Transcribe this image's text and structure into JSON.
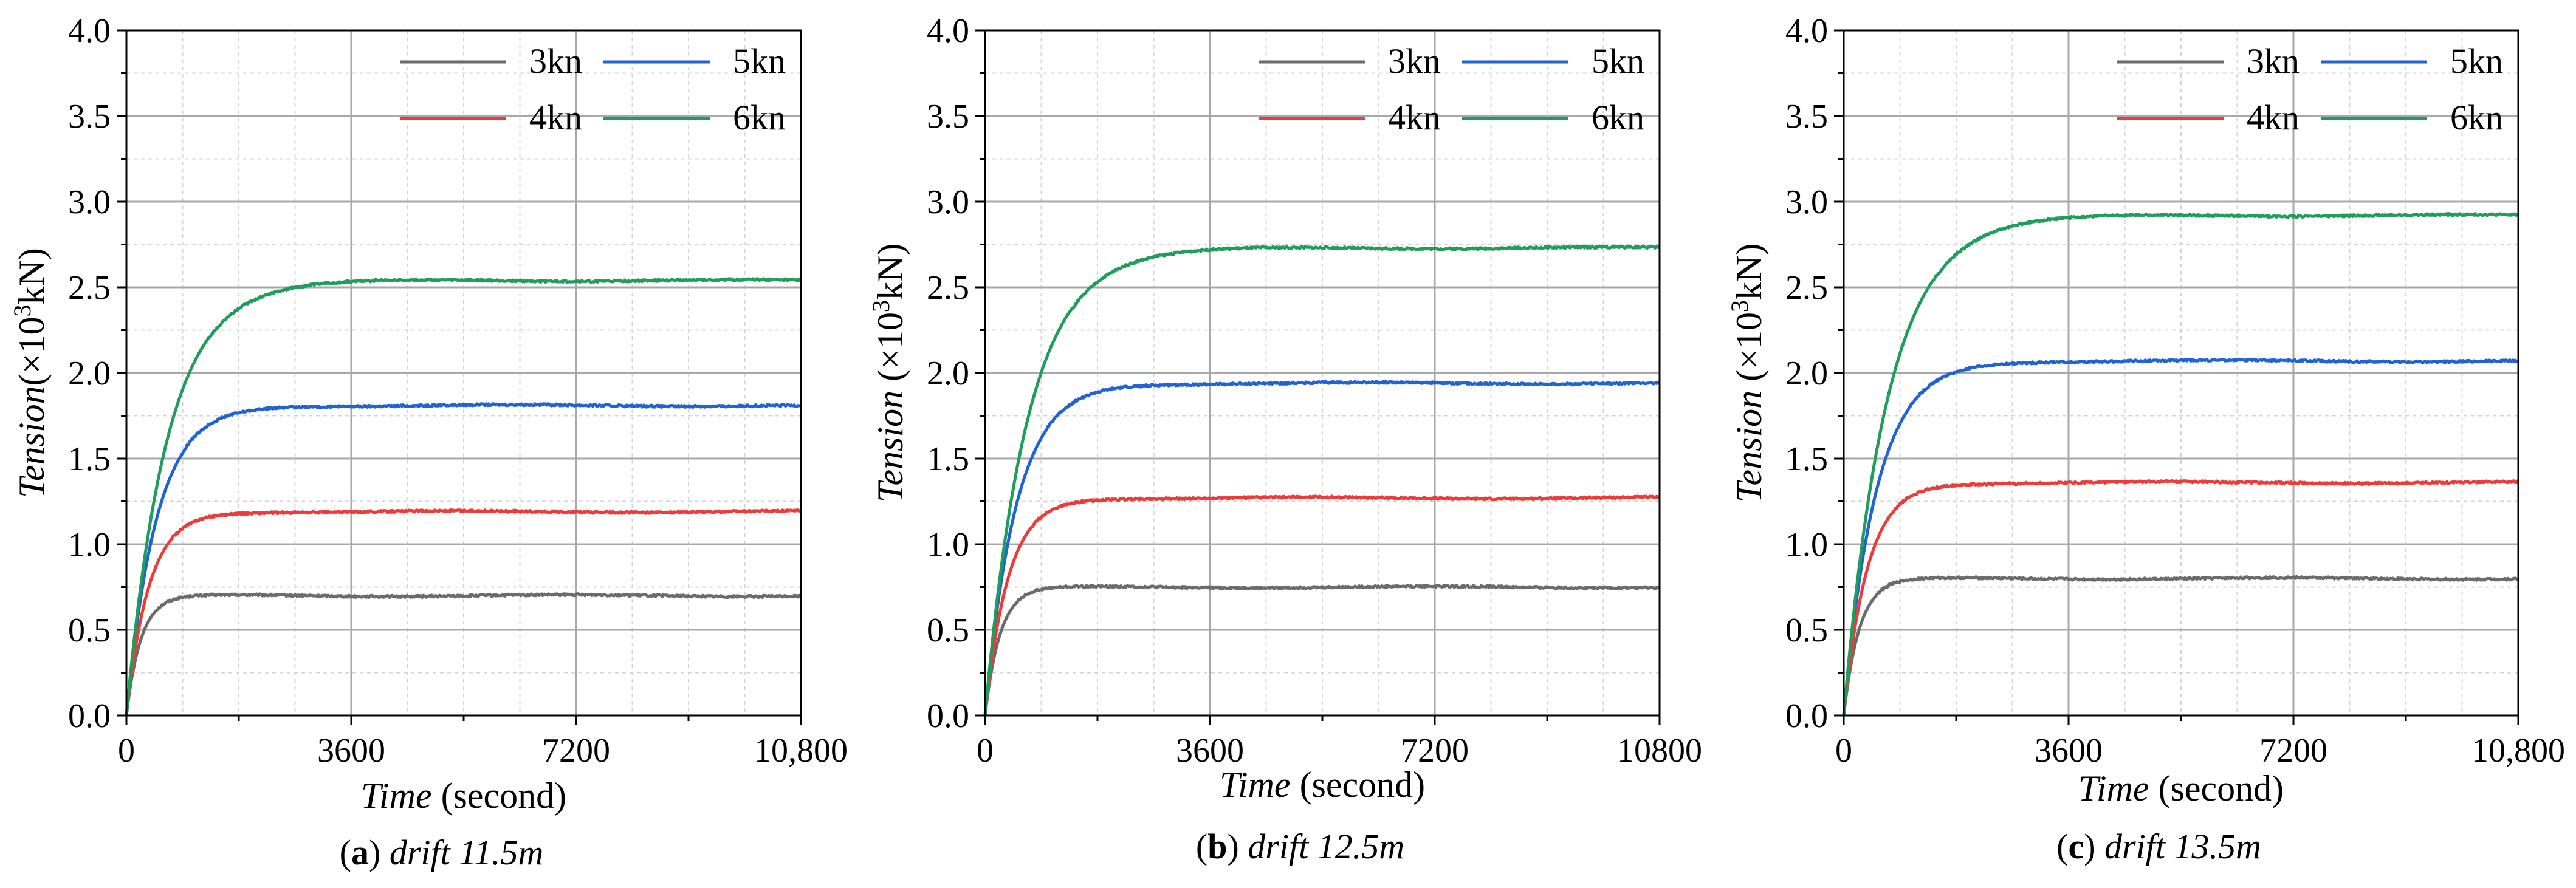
{
  "chart_data": [
    {
      "type": "line",
      "caption_letter": "a",
      "caption_name": "drift 11.5m",
      "xlabel_italic": "Time",
      "xlabel_rest": " (second)",
      "ylabel_italic": "Tension",
      "ylabel_rest": "(×10",
      "ylabel_sup": "3",
      "ylabel_end": "kN)",
      "xlim": [
        0,
        10800
      ],
      "ylim": [
        0,
        4.0
      ],
      "xticks": [
        0,
        3600,
        7200,
        10800
      ],
      "xtick_labels": [
        "0",
        "3600",
        "7200",
        "10,800"
      ],
      "yticks": [
        0.0,
        0.5,
        1.0,
        1.5,
        2.0,
        2.5,
        3.0,
        3.5,
        4.0
      ],
      "ytick_labels": [
        "0.0",
        "0.5",
        "1.0",
        "1.5",
        "2.0",
        "2.5",
        "3.0",
        "3.5",
        "4.0"
      ],
      "grid": true,
      "legend_position": "top-right",
      "series": [
        {
          "name": "3kn",
          "color": "#6b6b6b",
          "steady": 0.7,
          "tau": 230
        },
        {
          "name": "5kn",
          "color": "#1f63d6",
          "steady": 1.81,
          "tau": 480
        },
        {
          "name": "4kn",
          "color": "#ef3a3a",
          "steady": 1.19,
          "tau": 360
        },
        {
          "name": "6kn",
          "color": "#1f9e5b",
          "steady": 2.54,
          "tau": 650
        }
      ]
    },
    {
      "type": "line",
      "caption_letter": "b",
      "caption_name": "drift 12.5m",
      "xlabel_italic": "Time",
      "xlabel_rest": " (second)",
      "ylabel_italic": "Tension",
      "ylabel_rest": " (×10",
      "ylabel_sup": "3",
      "ylabel_end": "kN)",
      "xlim": [
        0,
        10800
      ],
      "ylim": [
        0,
        4.0
      ],
      "xticks": [
        0,
        3600,
        7200,
        10800
      ],
      "xtick_labels": [
        "0",
        "3600",
        "7200",
        "10800"
      ],
      "yticks": [
        0.0,
        0.5,
        1.0,
        1.5,
        2.0,
        2.5,
        3.0,
        3.5,
        4.0
      ],
      "ytick_labels": [
        "0.0",
        "0.5",
        "1.0",
        "1.5",
        "2.0",
        "2.5",
        "3.0",
        "3.5",
        "4.0"
      ],
      "grid": true,
      "legend_position": "top-right",
      "series": [
        {
          "name": "3kn",
          "color": "#6b6b6b",
          "steady": 0.75,
          "tau": 240
        },
        {
          "name": "5kn",
          "color": "#1f63d6",
          "steady": 1.94,
          "tau": 500
        },
        {
          "name": "4kn",
          "color": "#ef3a3a",
          "steady": 1.27,
          "tau": 370
        },
        {
          "name": "6kn",
          "color": "#1f9e5b",
          "steady": 2.73,
          "tau": 680
        }
      ]
    },
    {
      "type": "line",
      "caption_letter": "c",
      "caption_name": "drift 13.5m",
      "xlabel_italic": "Time",
      "xlabel_rest": " (second)",
      "ylabel_italic": "Tension",
      "ylabel_rest": " (×10",
      "ylabel_sup": "3",
      "ylabel_end": "kN)",
      "xlim": [
        0,
        10800
      ],
      "ylim": [
        0,
        4.0
      ],
      "xticks": [
        0,
        3600,
        7200,
        10800
      ],
      "xtick_labels": [
        "0",
        "3600",
        "7200",
        "10,800"
      ],
      "yticks": [
        0.0,
        0.5,
        1.0,
        1.5,
        2.0,
        2.5,
        3.0,
        3.5,
        4.0
      ],
      "ytick_labels": [
        "0.0",
        "0.5",
        "1.0",
        "1.5",
        "2.0",
        "2.5",
        "3.0",
        "3.5",
        "4.0"
      ],
      "grid": true,
      "legend_position": "top-right",
      "series": [
        {
          "name": "3kn",
          "color": "#6b6b6b",
          "steady": 0.8,
          "tau": 250
        },
        {
          "name": "5kn",
          "color": "#1f63d6",
          "steady": 2.07,
          "tau": 520
        },
        {
          "name": "4kn",
          "color": "#ef3a3a",
          "steady": 1.36,
          "tau": 380
        },
        {
          "name": "6kn",
          "color": "#1f9e5b",
          "steady": 2.92,
          "tau": 700
        }
      ]
    }
  ]
}
